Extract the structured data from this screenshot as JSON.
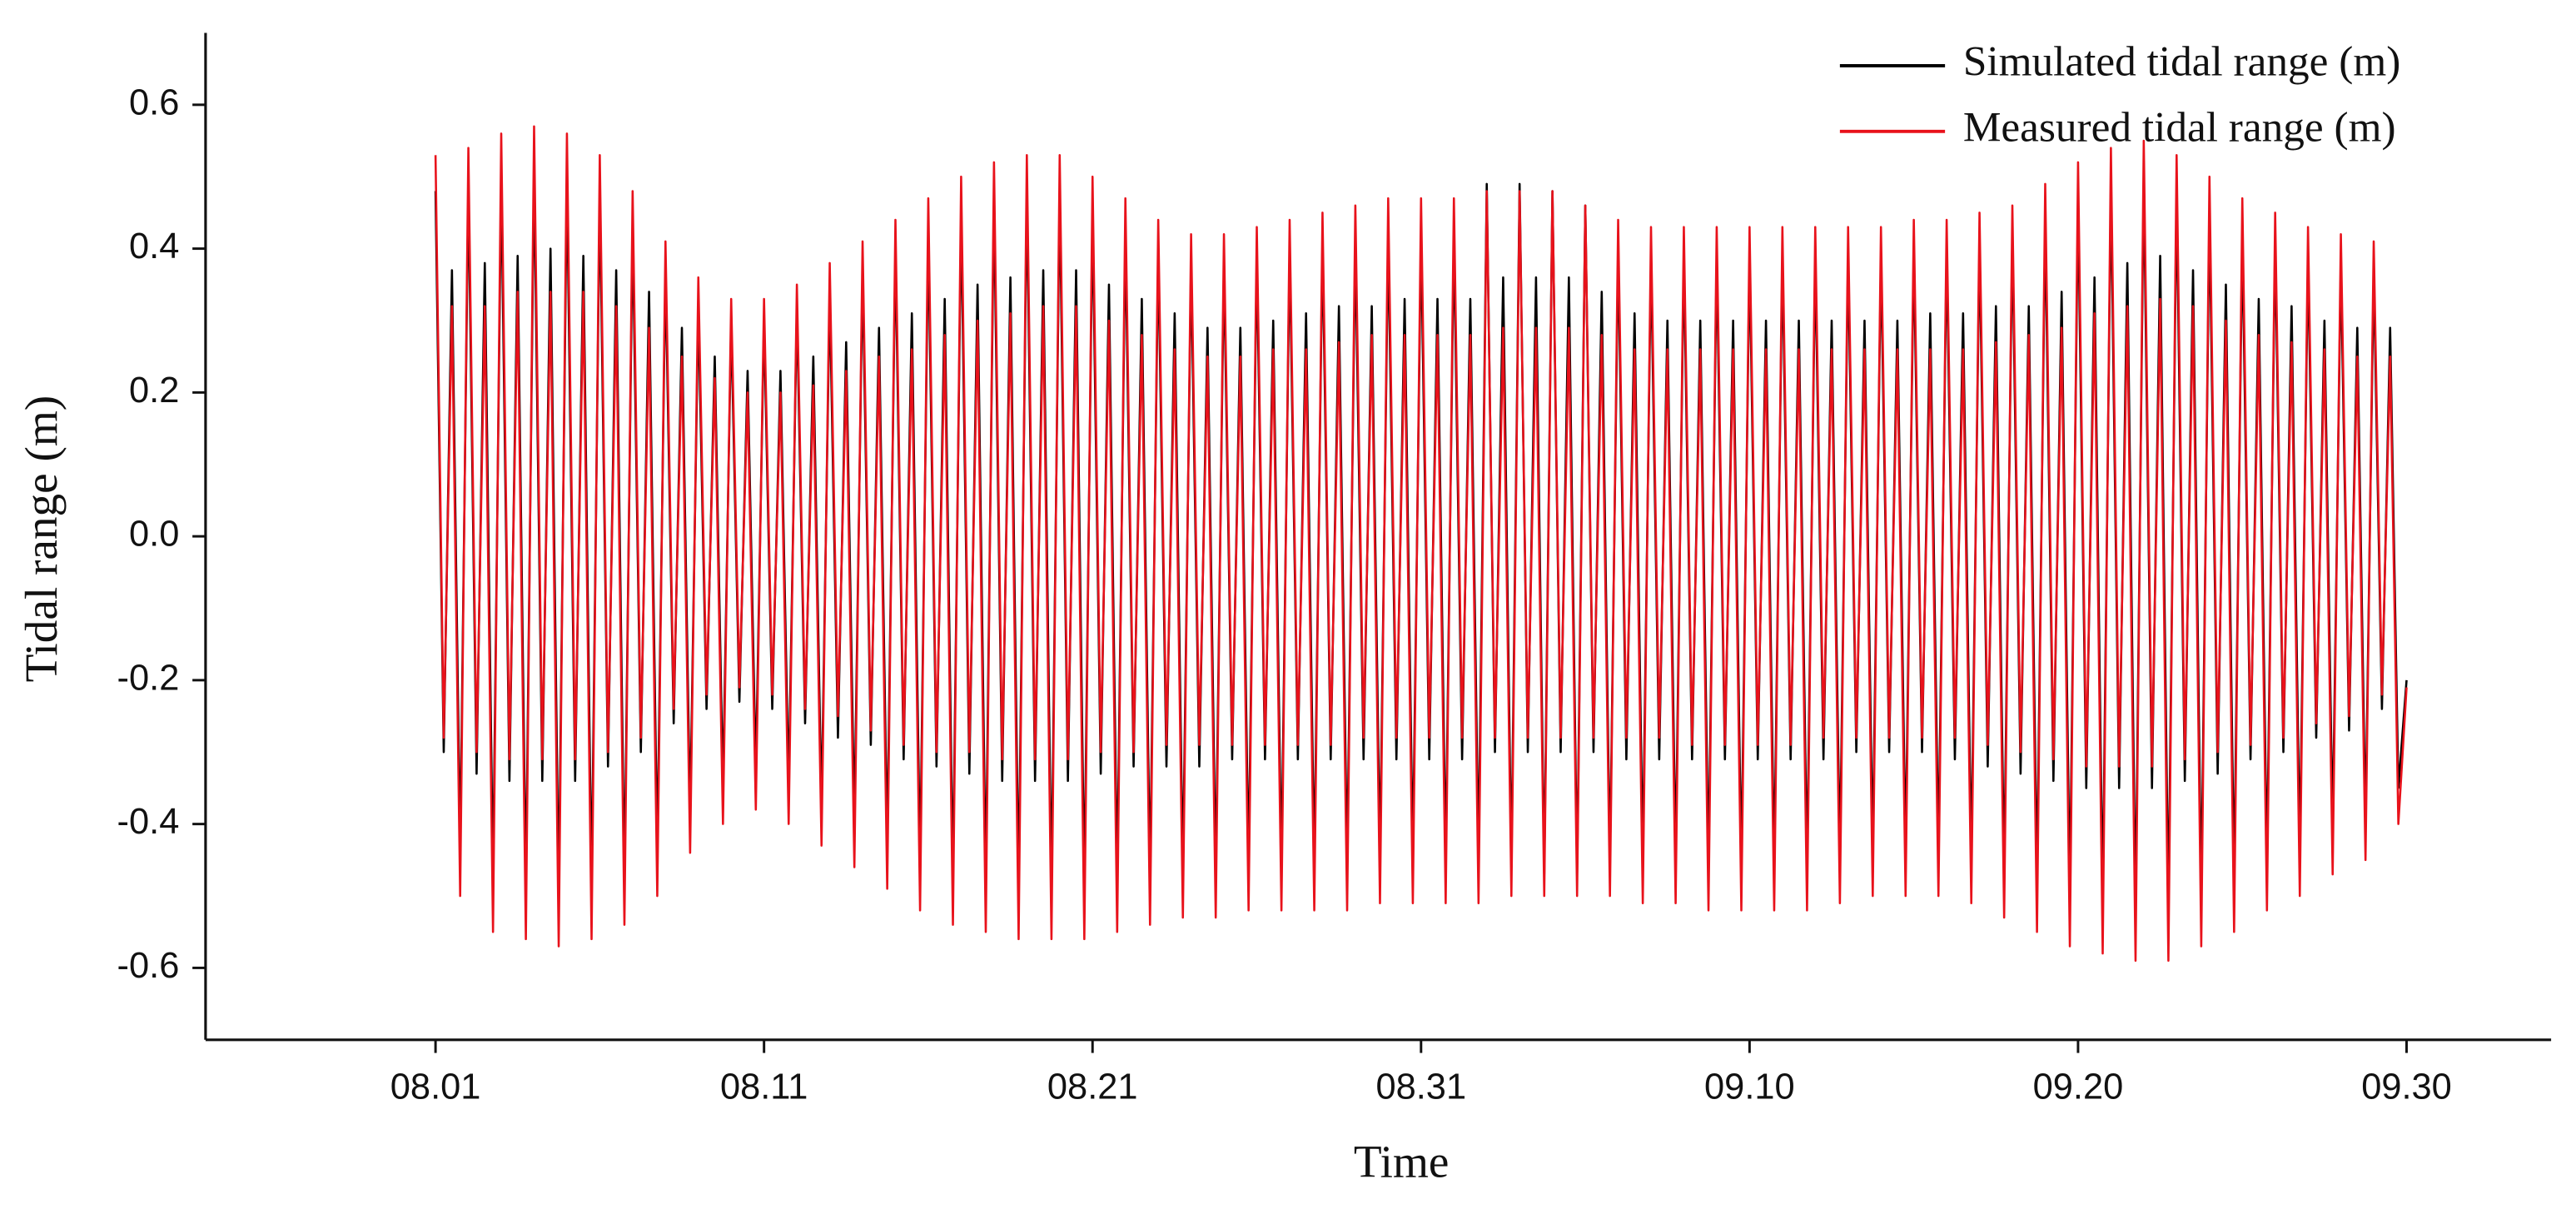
{
  "chart_data": {
    "type": "line",
    "x_label": "Time",
    "y_label": "Tidal range (m)",
    "legend": "upper right",
    "xlim": [
      -7,
      64.4
    ],
    "xticks": [
      {
        "value": 0,
        "label": "08.01"
      },
      {
        "value": 10,
        "label": "08.11"
      },
      {
        "value": 20,
        "label": "08.21"
      },
      {
        "value": 30,
        "label": "08.31"
      },
      {
        "value": 40,
        "label": "09.10"
      },
      {
        "value": 50,
        "label": "09.20"
      },
      {
        "value": 60,
        "label": "09.30"
      }
    ],
    "ylim": [
      -0.7,
      0.7
    ],
    "yticks": [
      -0.6,
      -0.4,
      -0.2,
      {
        "value": 0,
        "label": "0.0"
      },
      0.2,
      0.4,
      0.6
    ],
    "x": [
      0,
      0.25,
      0.5,
      0.75,
      1,
      1.25,
      1.5,
      1.75,
      2,
      2.25,
      2.5,
      2.75,
      3,
      3.25,
      3.5,
      3.75,
      4,
      4.25,
      4.5,
      4.75,
      5,
      5.25,
      5.5,
      5.75,
      6,
      6.25,
      6.5,
      6.75,
      7,
      7.25,
      7.5,
      7.75,
      8,
      8.25,
      8.5,
      8.75,
      9,
      9.25,
      9.5,
      9.75,
      10,
      10.25,
      10.5,
      10.75,
      11,
      11.25,
      11.5,
      11.75,
      12,
      12.25,
      12.5,
      12.75,
      13,
      13.25,
      13.5,
      13.75,
      14,
      14.25,
      14.5,
      14.75,
      15,
      15.25,
      15.5,
      15.75,
      16,
      16.25,
      16.5,
      16.75,
      17,
      17.25,
      17.5,
      17.75,
      18,
      18.25,
      18.5,
      18.75,
      19,
      19.25,
      19.5,
      19.75,
      20,
      20.25,
      20.5,
      20.75,
      21,
      21.25,
      21.5,
      21.75,
      22,
      22.25,
      22.5,
      22.75,
      23,
      23.25,
      23.5,
      23.75,
      24,
      24.25,
      24.5,
      24.75,
      25,
      25.25,
      25.5,
      25.75,
      26,
      26.25,
      26.5,
      26.75,
      27,
      27.25,
      27.5,
      27.75,
      28,
      28.25,
      28.5,
      28.75,
      29,
      29.25,
      29.5,
      29.75,
      30,
      30.25,
      30.5,
      30.75,
      31,
      31.25,
      31.5,
      31.75,
      32,
      32.25,
      32.5,
      32.75,
      33,
      33.25,
      33.5,
      33.75,
      34,
      34.25,
      34.5,
      34.75,
      35,
      35.25,
      35.5,
      35.75,
      36,
      36.25,
      36.5,
      36.75,
      37,
      37.25,
      37.5,
      37.75,
      38,
      38.25,
      38.5,
      38.75,
      39,
      39.25,
      39.5,
      39.75,
      40,
      40.25,
      40.5,
      40.75,
      41,
      41.25,
      41.5,
      41.75,
      42,
      42.25,
      42.5,
      42.75,
      43,
      43.25,
      43.5,
      43.75,
      44,
      44.25,
      44.5,
      44.75,
      45,
      45.25,
      45.5,
      45.75,
      46,
      46.25,
      46.5,
      46.75,
      47,
      47.25,
      47.5,
      47.75,
      48,
      48.25,
      48.5,
      48.75,
      49,
      49.25,
      49.5,
      49.75,
      50,
      50.25,
      50.5,
      50.75,
      51,
      51.25,
      51.5,
      51.75,
      52,
      52.25,
      52.5,
      52.75,
      53,
      53.25,
      53.5,
      53.75,
      54,
      54.25,
      54.5,
      54.75,
      55,
      55.25,
      55.5,
      55.75,
      56,
      56.25,
      56.5,
      56.75,
      57,
      57.25,
      57.5,
      57.75,
      58,
      58.25,
      58.5,
      58.75,
      59,
      59.25,
      59.5,
      59.75,
      60
    ],
    "series": [
      {
        "name": "Simulated tidal range (m)",
        "color": "#000000",
        "values": [
          0.48,
          -0.3,
          0.37,
          -0.44,
          0.49,
          -0.33,
          0.38,
          -0.48,
          0.5,
          -0.34,
          0.39,
          -0.49,
          0.51,
          -0.34,
          0.4,
          -0.5,
          0.5,
          -0.34,
          0.39,
          -0.49,
          0.48,
          -0.32,
          0.37,
          -0.48,
          0.43,
          -0.3,
          0.34,
          -0.44,
          0.37,
          -0.26,
          0.29,
          -0.39,
          0.32,
          -0.24,
          0.25,
          -0.35,
          0.3,
          -0.23,
          0.23,
          -0.33,
          0.3,
          -0.24,
          0.23,
          -0.35,
          0.32,
          -0.26,
          0.25,
          -0.38,
          0.34,
          -0.28,
          0.27,
          -0.4,
          0.37,
          -0.29,
          0.29,
          -0.43,
          0.4,
          -0.31,
          0.31,
          -0.46,
          0.42,
          -0.32,
          0.33,
          -0.48,
          0.45,
          -0.33,
          0.35,
          -0.48,
          0.47,
          -0.34,
          0.36,
          -0.49,
          0.48,
          -0.34,
          0.37,
          -0.49,
          0.48,
          -0.34,
          0.37,
          -0.49,
          0.45,
          -0.33,
          0.35,
          -0.48,
          0.42,
          -0.32,
          0.33,
          -0.48,
          0.4,
          -0.32,
          0.31,
          -0.47,
          0.38,
          -0.32,
          0.29,
          -0.47,
          0.38,
          -0.31,
          0.29,
          -0.46,
          0.39,
          -0.31,
          0.3,
          -0.46,
          0.4,
          -0.31,
          0.31,
          -0.46,
          0.41,
          -0.31,
          0.32,
          -0.46,
          0.41,
          -0.31,
          0.32,
          -0.45,
          0.42,
          -0.31,
          0.33,
          -0.45,
          0.42,
          -0.31,
          0.33,
          -0.45,
          0.42,
          -0.31,
          0.33,
          -0.45,
          0.49,
          -0.3,
          0.36,
          -0.46,
          0.49,
          -0.3,
          0.36,
          -0.47,
          0.48,
          -0.3,
          0.36,
          -0.47,
          0.46,
          -0.3,
          0.34,
          -0.46,
          0.4,
          -0.31,
          0.31,
          -0.45,
          0.39,
          -0.31,
          0.3,
          -0.45,
          0.39,
          -0.31,
          0.3,
          -0.46,
          0.39,
          -0.31,
          0.3,
          -0.46,
          0.39,
          -0.31,
          0.3,
          -0.46,
          0.39,
          -0.31,
          0.3,
          -0.46,
          0.39,
          -0.31,
          0.3,
          -0.45,
          0.39,
          -0.3,
          0.3,
          -0.44,
          0.39,
          -0.3,
          0.3,
          -0.44,
          0.4,
          -0.3,
          0.31,
          -0.44,
          0.4,
          -0.31,
          0.31,
          -0.45,
          0.41,
          -0.32,
          0.32,
          -0.47,
          0.42,
          -0.33,
          0.32,
          -0.48,
          0.44,
          -0.34,
          0.34,
          -0.5,
          0.47,
          -0.35,
          0.36,
          -0.51,
          0.49,
          -0.35,
          0.38,
          -0.52,
          0.5,
          -0.35,
          0.39,
          -0.52,
          0.48,
          -0.34,
          0.37,
          -0.5,
          0.45,
          -0.33,
          0.35,
          -0.48,
          0.42,
          -0.31,
          0.33,
          -0.46,
          0.41,
          -0.3,
          0.32,
          -0.44,
          0.39,
          -0.28,
          0.3,
          -0.41,
          0.38,
          -0.27,
          0.29,
          -0.4,
          0.37,
          -0.24,
          0.29,
          -0.35,
          -0.2
        ]
      },
      {
        "name": "Measured tidal range (m)",
        "color": "#e8121b",
        "values": [
          0.53,
          -0.28,
          0.32,
          -0.5,
          0.54,
          -0.3,
          0.32,
          -0.55,
          0.56,
          -0.31,
          0.34,
          -0.56,
          0.57,
          -0.31,
          0.34,
          -0.57,
          0.56,
          -0.31,
          0.34,
          -0.56,
          0.53,
          -0.3,
          0.32,
          -0.54,
          0.48,
          -0.28,
          0.29,
          -0.5,
          0.41,
          -0.24,
          0.25,
          -0.44,
          0.36,
          -0.22,
          0.22,
          -0.4,
          0.33,
          -0.21,
          0.2,
          -0.38,
          0.33,
          -0.22,
          0.2,
          -0.4,
          0.35,
          -0.24,
          0.21,
          -0.43,
          0.38,
          -0.25,
          0.23,
          -0.46,
          0.41,
          -0.27,
          0.25,
          -0.49,
          0.44,
          -0.29,
          0.26,
          -0.52,
          0.47,
          -0.3,
          0.28,
          -0.54,
          0.5,
          -0.3,
          0.3,
          -0.55,
          0.52,
          -0.31,
          0.31,
          -0.56,
          0.53,
          -0.31,
          0.32,
          -0.56,
          0.53,
          -0.31,
          0.32,
          -0.56,
          0.5,
          -0.3,
          0.3,
          -0.55,
          0.47,
          -0.3,
          0.28,
          -0.54,
          0.44,
          -0.29,
          0.26,
          -0.53,
          0.42,
          -0.29,
          0.25,
          -0.53,
          0.42,
          -0.29,
          0.25,
          -0.52,
          0.43,
          -0.29,
          0.26,
          -0.52,
          0.44,
          -0.29,
          0.26,
          -0.52,
          0.45,
          -0.29,
          0.27,
          -0.52,
          0.46,
          -0.28,
          0.28,
          -0.51,
          0.47,
          -0.28,
          0.28,
          -0.51,
          0.47,
          -0.28,
          0.28,
          -0.51,
          0.47,
          -0.28,
          0.28,
          -0.51,
          0.48,
          -0.28,
          0.29,
          -0.5,
          0.48,
          -0.28,
          0.29,
          -0.5,
          0.48,
          -0.28,
          0.29,
          -0.5,
          0.46,
          -0.28,
          0.28,
          -0.5,
          0.44,
          -0.28,
          0.26,
          -0.51,
          0.43,
          -0.28,
          0.26,
          -0.51,
          0.43,
          -0.29,
          0.26,
          -0.52,
          0.43,
          -0.29,
          0.26,
          -0.52,
          0.43,
          -0.29,
          0.26,
          -0.52,
          0.43,
          -0.29,
          0.26,
          -0.52,
          0.43,
          -0.28,
          0.26,
          -0.51,
          0.43,
          -0.28,
          0.26,
          -0.5,
          0.43,
          -0.28,
          0.26,
          -0.5,
          0.44,
          -0.28,
          0.26,
          -0.5,
          0.44,
          -0.28,
          0.26,
          -0.51,
          0.45,
          -0.29,
          0.27,
          -0.53,
          0.46,
          -0.3,
          0.28,
          -0.55,
          0.49,
          -0.31,
          0.29,
          -0.57,
          0.52,
          -0.32,
          0.31,
          -0.58,
          0.54,
          -0.32,
          0.32,
          -0.59,
          0.55,
          -0.32,
          0.33,
          -0.59,
          0.53,
          -0.31,
          0.32,
          -0.57,
          0.5,
          -0.3,
          0.3,
          -0.55,
          0.47,
          -0.29,
          0.28,
          -0.52,
          0.45,
          -0.28,
          0.27,
          -0.5,
          0.43,
          -0.26,
          0.26,
          -0.47,
          0.42,
          -0.25,
          0.25,
          -0.45,
          0.41,
          -0.22,
          0.25,
          -0.4,
          -0.21
        ]
      }
    ]
  }
}
